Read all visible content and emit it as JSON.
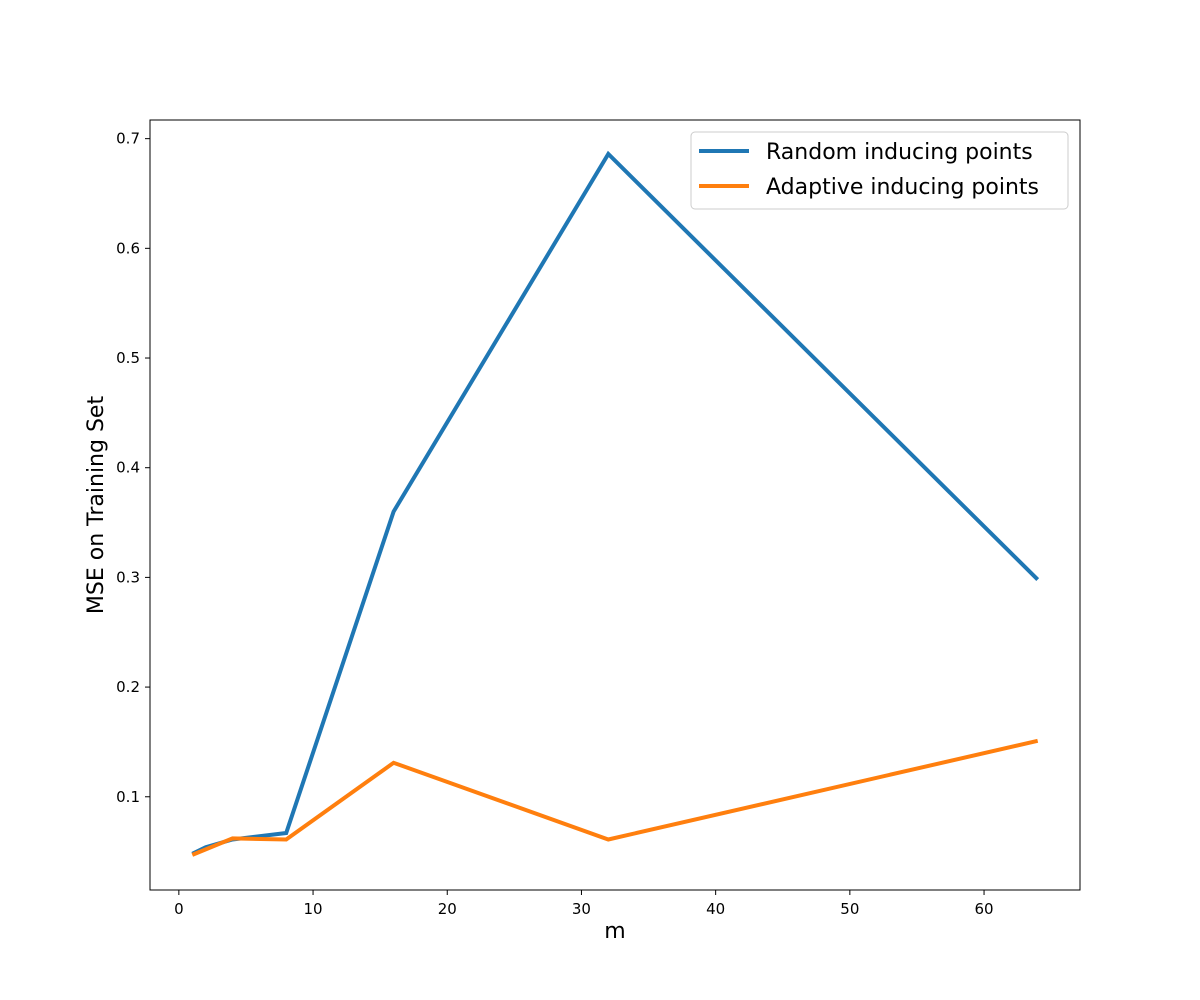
{
  "chart_data": {
    "type": "line",
    "title": "",
    "xlabel": "m",
    "ylabel": "MSE on Training Set",
    "xlim": [
      -2.15,
      67.15
    ],
    "ylim": [
      0.015,
      0.717
    ],
    "xticks": [
      0,
      10,
      20,
      30,
      40,
      50,
      60
    ],
    "yticks": [
      0.1,
      0.2,
      0.3,
      0.4,
      0.5,
      0.6,
      0.7
    ],
    "grid": false,
    "legend_position": "top-right",
    "x": [
      1,
      2,
      4,
      8,
      16,
      32,
      64
    ],
    "series": [
      {
        "name": "Random inducing points",
        "color": "#1f77b4",
        "values": [
          0.048,
          0.054,
          0.061,
          0.067,
          0.36,
          0.686,
          0.298
        ]
      },
      {
        "name": "Adaptive inducing points",
        "color": "#ff7f0e",
        "values": [
          0.047,
          0.052,
          0.062,
          0.061,
          0.131,
          0.061,
          0.151
        ]
      }
    ]
  }
}
